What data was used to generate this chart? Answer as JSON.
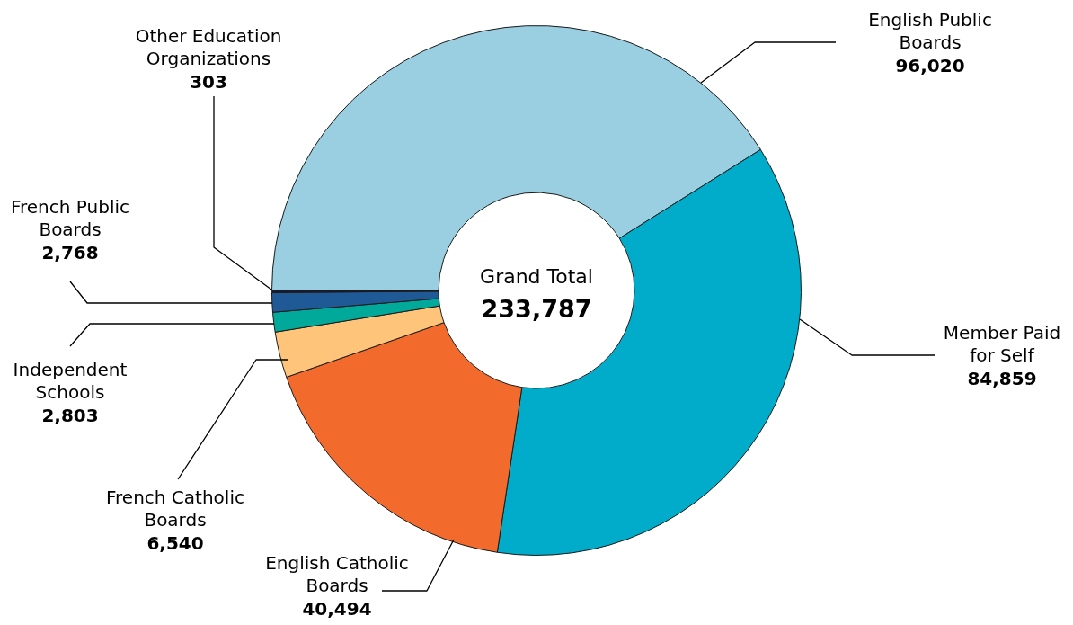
{
  "chart_data": {
    "type": "donut",
    "title": "Grand Total",
    "subtitle": "233,787",
    "categories": [
      "English Public Boards",
      "Member Paid for Self",
      "English Catholic Boards",
      "French Catholic Boards",
      "Independent Schools",
      "French Public Boards",
      "Other Education Organizations"
    ],
    "values": [
      96020,
      84859,
      40494,
      6540,
      2803,
      2768,
      303
    ],
    "colors": [
      "#99cfe0",
      "#00acc9",
      "#f26b2c",
      "#fdc47a",
      "#00a99a",
      "#1f5a96",
      "#1a1a3a"
    ],
    "value_labels": [
      "96,020",
      "84,859",
      "40,494",
      "6,540",
      "2,803",
      "2,768",
      "303"
    ],
    "legend": false
  }
}
